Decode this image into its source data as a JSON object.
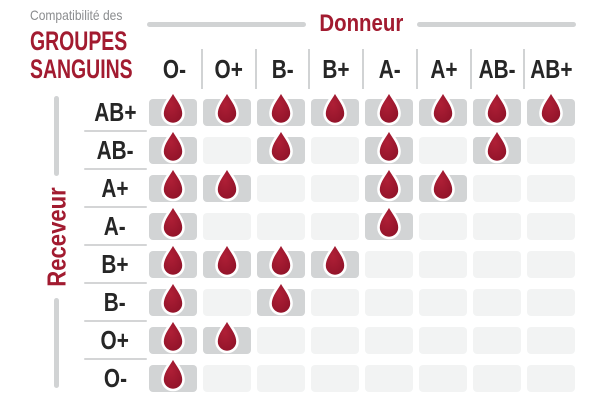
{
  "title": {
    "eyebrow": "Compatibilité des",
    "main_line1": "GROUPES",
    "main_line2": "SANGUINS"
  },
  "axes": {
    "donor": "Donneur",
    "receiver": "Receveur"
  },
  "icons": {
    "compatible_marker": "blood-drop-icon"
  },
  "colors": {
    "accent_red": "#A21B30",
    "drop_red": "#AF1F36",
    "drop_red_dark": "#8E1228",
    "cell_filled": "#D2D4D5",
    "cell_empty": "#F2F3F3",
    "line_gray": "#D1D3D4",
    "text_gray": "#8B8D8F",
    "text_dark": "#262626"
  },
  "chart_data": {
    "type": "table",
    "title": "Compatibilité des GROUPES SANGUINS",
    "x_axis_label": "Donneur",
    "y_axis_label": "Receveur",
    "columns": [
      "O-",
      "O+",
      "B-",
      "B+",
      "A-",
      "A+",
      "AB-",
      "AB+"
    ],
    "rows": [
      "AB+",
      "AB-",
      "A+",
      "A-",
      "B+",
      "B-",
      "O+",
      "O-"
    ],
    "marker": "blood-drop = compatible, empty cell = incompatible",
    "compatibility": [
      [
        1,
        1,
        1,
        1,
        1,
        1,
        1,
        1
      ],
      [
        1,
        0,
        1,
        0,
        1,
        0,
        1,
        0
      ],
      [
        1,
        1,
        0,
        0,
        1,
        1,
        0,
        0
      ],
      [
        1,
        0,
        0,
        0,
        1,
        0,
        0,
        0
      ],
      [
        1,
        1,
        1,
        1,
        0,
        0,
        0,
        0
      ],
      [
        1,
        0,
        1,
        0,
        0,
        0,
        0,
        0
      ],
      [
        1,
        1,
        0,
        0,
        0,
        0,
        0,
        0
      ],
      [
        1,
        0,
        0,
        0,
        0,
        0,
        0,
        0
      ]
    ]
  }
}
